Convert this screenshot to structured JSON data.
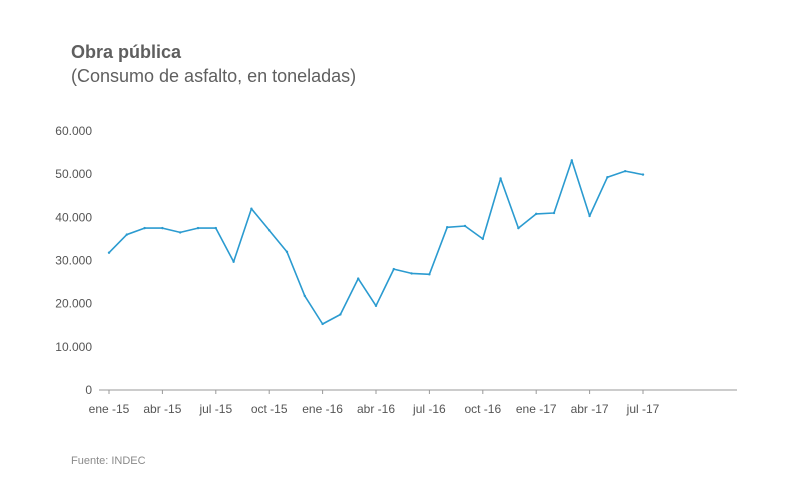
{
  "header": {
    "title": "Obra pública",
    "subtitle": "(Consumo de asfalto, en toneladas)"
  },
  "footer": {
    "source": "Fuente: INDEC"
  },
  "colors": {
    "line": "#2b9bd0",
    "axis": "#999999",
    "text": "#5f5f5f"
  },
  "chart_data": {
    "type": "line",
    "title": "Obra pública",
    "subtitle": "(Consumo de asfalto, en toneladas)",
    "xlabel": "",
    "ylabel": "",
    "ylim": [
      0,
      60000
    ],
    "grid": false,
    "y_ticks": [
      0,
      10000,
      20000,
      30000,
      40000,
      50000,
      60000
    ],
    "y_tick_labels": [
      "0",
      "10.000",
      "20.000",
      "30.000",
      "40.000",
      "50.000",
      "60.000"
    ],
    "x_tick_labels": [
      "ene -15",
      "abr -15",
      "jul -15",
      "oct -15",
      "ene -16",
      "abr -16",
      "jul -16",
      "oct -16",
      "ene -17",
      "abr -17",
      "jul -17"
    ],
    "x": [
      "ene-15",
      "feb-15",
      "mar-15",
      "abr-15",
      "may-15",
      "jun-15",
      "jul-15",
      "ago-15",
      "sep-15",
      "oct-15",
      "nov-15",
      "dic-15",
      "ene-16",
      "feb-16",
      "mar-16",
      "abr-16",
      "may-16",
      "jun-16",
      "jul-16",
      "ago-16",
      "sep-16",
      "oct-16",
      "nov-16",
      "dic-16",
      "ene-17",
      "feb-17",
      "mar-17",
      "abr-17",
      "may-17",
      "jun-17",
      "jul-17"
    ],
    "series": [
      {
        "values": [
          31800,
          36000,
          37500,
          37500,
          36500,
          37500,
          37500,
          29700,
          42000,
          37000,
          32000,
          21800,
          15300,
          17500,
          25800,
          19500,
          28000,
          27000,
          26800,
          37700,
          38000,
          35000,
          49000,
          37500,
          40800,
          41000,
          53200,
          40300,
          49300,
          50700,
          49900
        ]
      }
    ]
  }
}
